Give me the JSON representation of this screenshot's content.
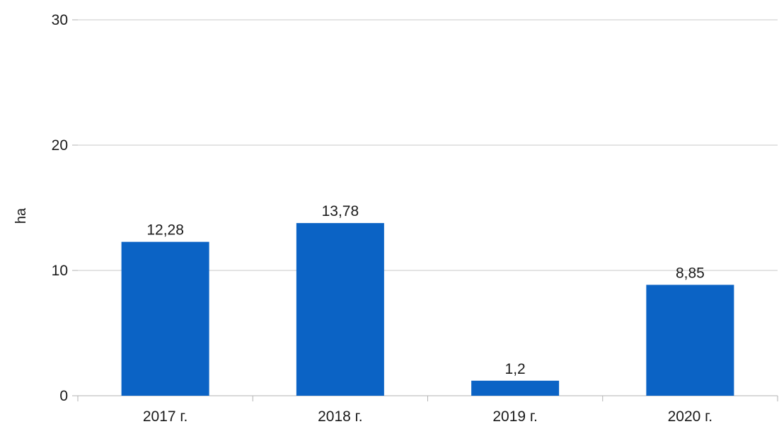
{
  "chart_data": {
    "type": "bar",
    "title": "",
    "xlabel": "",
    "ylabel": "ha",
    "categories": [
      "2017 г.",
      "2018 г.",
      "2019 г.",
      "2020 г."
    ],
    "values": [
      12.28,
      13.78,
      1.2,
      8.85
    ],
    "data_labels": [
      "12,28",
      "13,78",
      "1,2",
      "8,85"
    ],
    "yticks": [
      0,
      10,
      20,
      30
    ],
    "ylim": [
      0,
      30
    ],
    "grid": true,
    "legend": "none",
    "colors": {
      "bar": "#0b63c5",
      "grid": "#c8c8c8",
      "axis": "#b3b3b3",
      "text": "#1a1a1a"
    }
  }
}
